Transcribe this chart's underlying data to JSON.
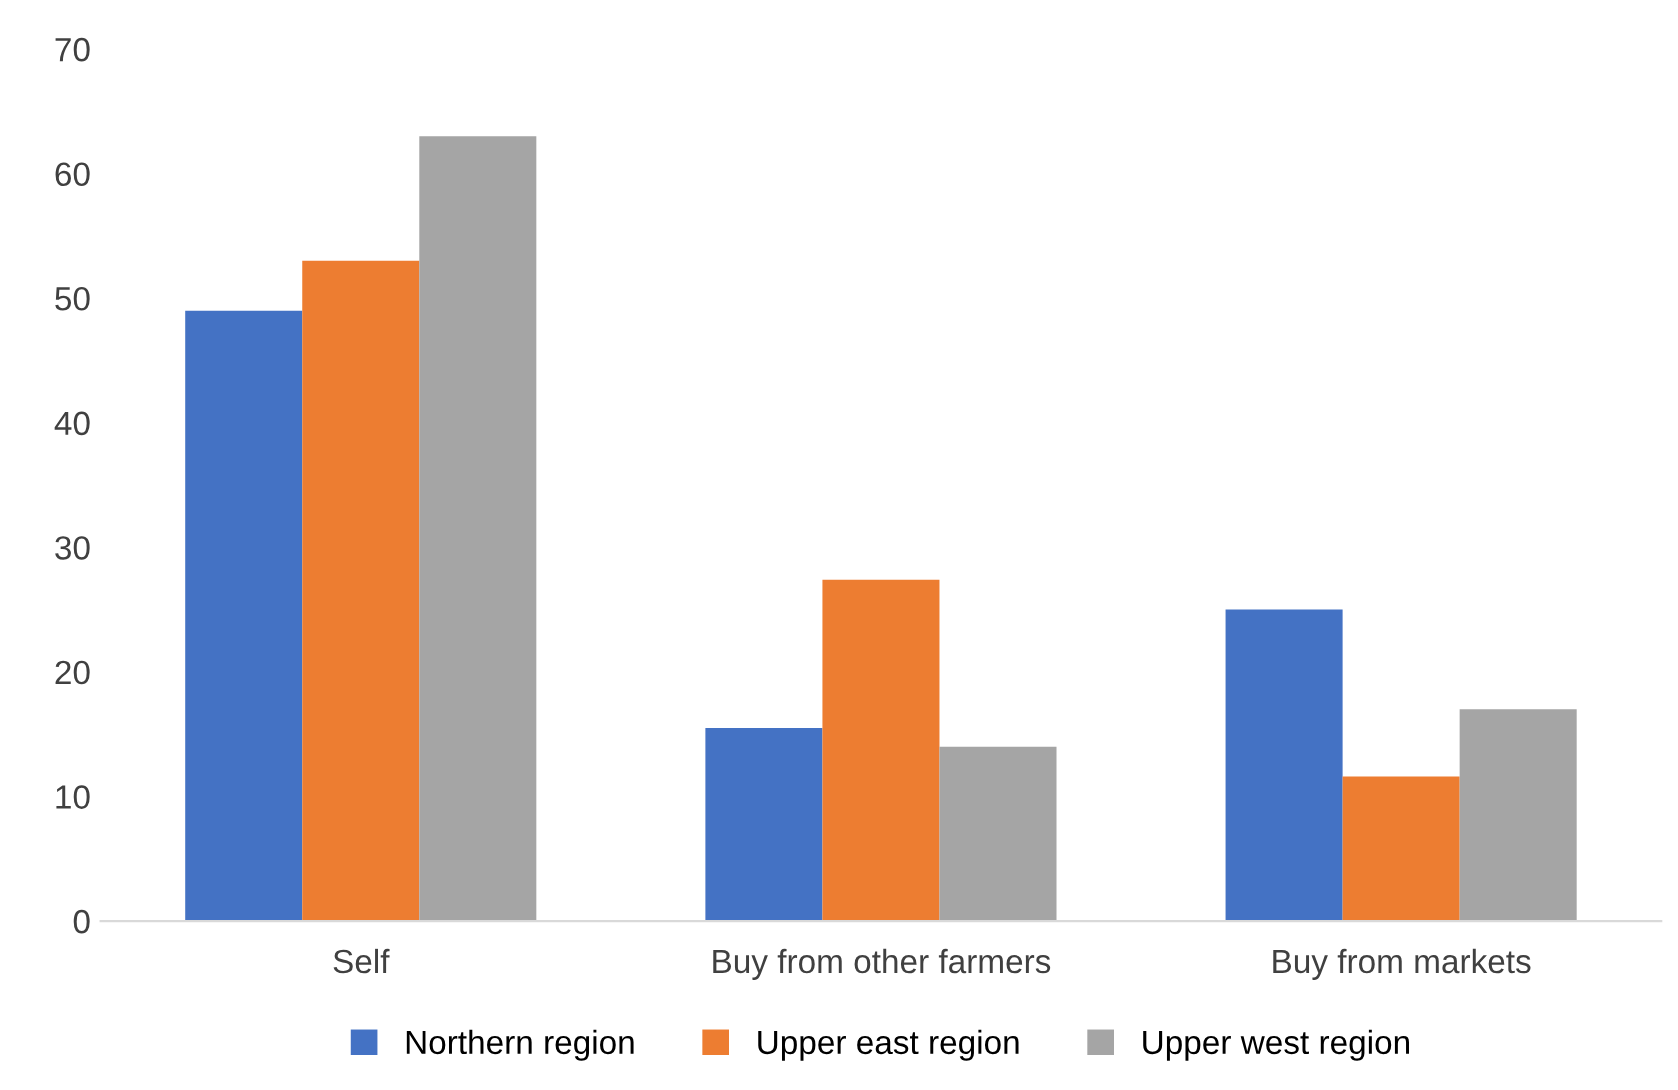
{
  "chart_data": {
    "type": "bar",
    "categories": [
      "Self",
      "Buy from other farmers",
      "Buy from markets"
    ],
    "series": [
      {
        "name": "Northern region",
        "color": "#4472c4",
        "values": [
          49,
          15.5,
          25
        ]
      },
      {
        "name": "Upper east region",
        "color": "#ed7d31",
        "values": [
          53,
          27.4,
          11.6
        ]
      },
      {
        "name": "Upper west region",
        "color": "#a5a5a5",
        "values": [
          63,
          14,
          17
        ]
      }
    ],
    "ylim": [
      0,
      70
    ],
    "yticks": [
      0,
      10,
      20,
      30,
      40,
      50,
      60,
      70
    ],
    "grid": false,
    "legend": "bottom"
  }
}
